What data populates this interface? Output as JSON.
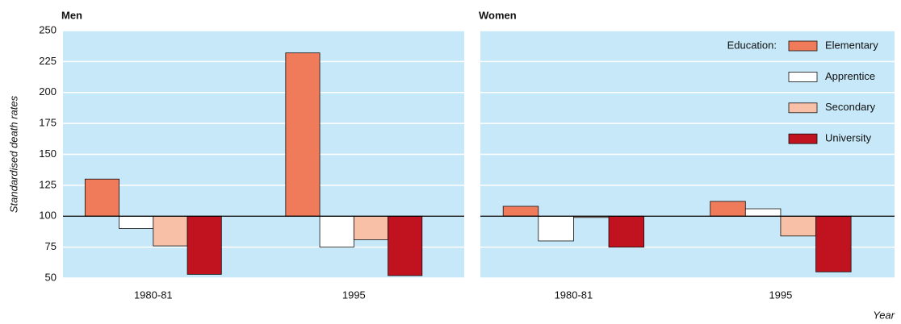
{
  "chart_data": [
    {
      "type": "bar",
      "title": "Men",
      "y_label": "Standardised death rates",
      "categories": [
        "1980-81",
        "1995"
      ],
      "baseline": 100,
      "ylim": [
        50,
        250
      ],
      "yticks": [
        50,
        75,
        100,
        125,
        150,
        175,
        200,
        225,
        250
      ],
      "grid": true,
      "series": [
        {
          "name": "Elementary",
          "color": "#f07b5a",
          "values": [
            130,
            232
          ]
        },
        {
          "name": "Apprentice",
          "color": "#ffffff",
          "values": [
            90,
            75
          ]
        },
        {
          "name": "Secondary",
          "color": "#f9c0a8",
          "values": [
            76,
            81
          ]
        },
        {
          "name": "University",
          "color": "#c0121f",
          "values": [
            53,
            52
          ]
        }
      ]
    },
    {
      "type": "bar",
      "title": "Women",
      "x_label": "Year",
      "legend_title": "Education:",
      "legend": "upper right",
      "categories": [
        "1980-81",
        "1995"
      ],
      "baseline": 100,
      "ylim": [
        50,
        250
      ],
      "yticks": [
        50,
        75,
        100,
        125,
        150,
        175,
        200,
        225,
        250
      ],
      "grid": true,
      "series": [
        {
          "name": "Elementary",
          "color": "#f07b5a",
          "values": [
            108,
            112
          ]
        },
        {
          "name": "Apprentice",
          "color": "#ffffff",
          "values": [
            80,
            106
          ]
        },
        {
          "name": "Secondary",
          "color": "#f9c0a8",
          "values": [
            99,
            84
          ]
        },
        {
          "name": "University",
          "color": "#c0121f",
          "values": [
            75,
            55
          ]
        }
      ]
    }
  ]
}
